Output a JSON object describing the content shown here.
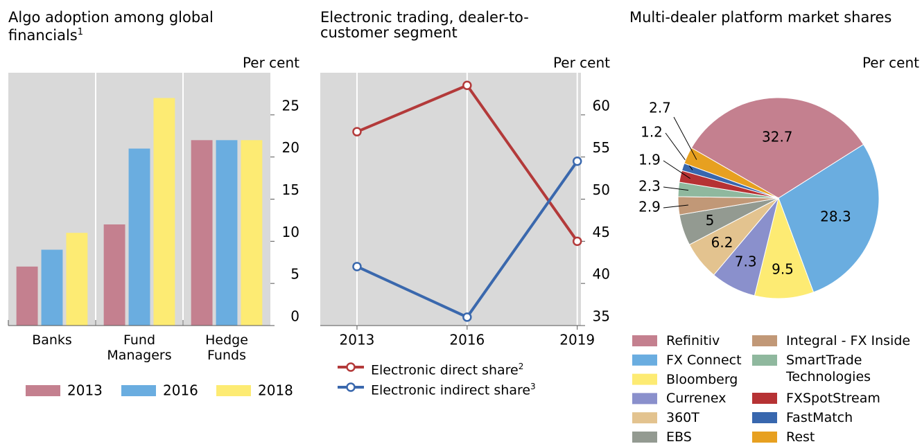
{
  "chart_data": [
    {
      "type": "bar",
      "title": "Algo adoption among global financials",
      "title_note": "1",
      "y_label": "Per cent",
      "categories": [
        "Banks",
        "Fund Managers",
        "Hedge Funds"
      ],
      "series": [
        {
          "name": "2013",
          "color": "#c4808f",
          "values": [
            7,
            12,
            22
          ]
        },
        {
          "name": "2016",
          "color": "#6aade0",
          "values": [
            9,
            21,
            22
          ]
        },
        {
          "name": "2018",
          "color": "#fdeb73",
          "values": [
            11,
            27,
            22
          ]
        }
      ],
      "ylim": [
        0,
        30
      ],
      "yticks": [
        0,
        5,
        10,
        15,
        20,
        25
      ]
    },
    {
      "type": "line",
      "title": "Electronic trading, dealer-to-customer segment",
      "y_label": "Per cent",
      "x": [
        2013,
        2016,
        2019
      ],
      "xlim": [
        2012,
        2019.1
      ],
      "xticks": [
        2013,
        2016,
        2019
      ],
      "series": [
        {
          "name": "Electronic direct share",
          "note": "2",
          "color": "#b33a3a",
          "values": [
            58,
            63.5,
            45
          ]
        },
        {
          "name": "Electronic indirect share",
          "note": "3",
          "color": "#3a68ad",
          "values": [
            42,
            36,
            54.5
          ]
        }
      ],
      "ylim": [
        35,
        65
      ],
      "yticks": [
        35,
        40,
        45,
        50,
        55,
        60
      ]
    },
    {
      "type": "pie",
      "title": "Multi-dealer platform market shares",
      "y_label": "Per cent",
      "categories": [
        "Refinitiv",
        "FX Connect",
        "Bloomberg",
        "Currenex",
        "360T",
        "EBS",
        "Integral - FX Inside",
        "SmartTrade Technologies",
        "FXSpotStream",
        "FastMatch",
        "Rest"
      ],
      "values": [
        32.7,
        28.3,
        9.5,
        7.3,
        6.2,
        5,
        2.9,
        2.3,
        1.9,
        1.2,
        2.7
      ],
      "colors": [
        "#c4808f",
        "#6aade0",
        "#fdeb73",
        "#8a90cc",
        "#e3c38f",
        "#939a91",
        "#c19877",
        "#8fb89e",
        "#b63234",
        "#3867ae",
        "#e7a020"
      ]
    }
  ]
}
